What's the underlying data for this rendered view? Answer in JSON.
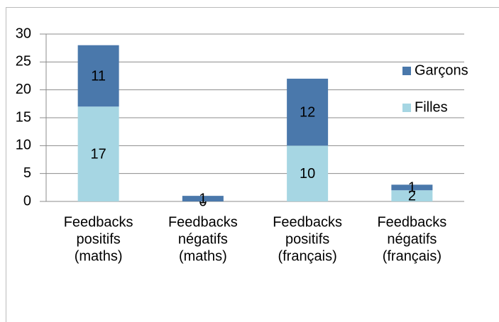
{
  "chart_data": {
    "type": "stacked_bar",
    "categories": [
      [
        "Feedbacks",
        "positifs",
        "(maths)"
      ],
      [
        "Feedbacks",
        "négatifs",
        "(maths)"
      ],
      [
        "Feedbacks",
        "positifs",
        "(français)"
      ],
      [
        "Feedbacks",
        "négatifs",
        "(français)"
      ]
    ],
    "series": [
      {
        "name": "Filles",
        "color": "#a6d6e3",
        "values": [
          17,
          0,
          10,
          2
        ]
      },
      {
        "name": "Garçons",
        "color": "#4a78ab",
        "values": [
          11,
          1,
          12,
          1
        ]
      }
    ],
    "ylim": [
      0,
      30
    ],
    "yticks": [
      0,
      5,
      10,
      15,
      20,
      25,
      30
    ],
    "grid": true,
    "legend": "right",
    "data_labels": true
  }
}
